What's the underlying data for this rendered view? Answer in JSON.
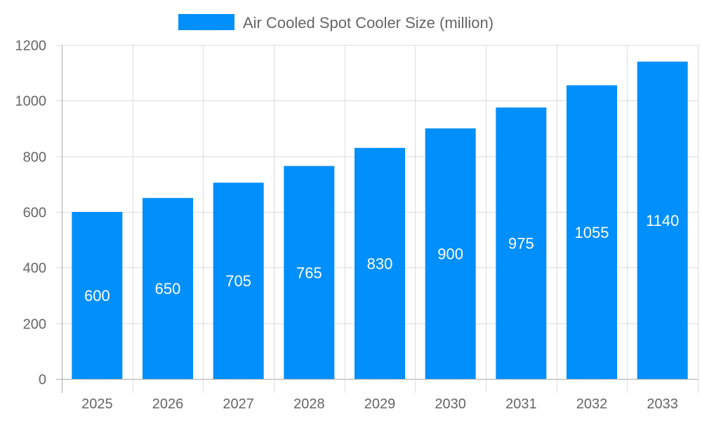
{
  "chart_data": {
    "type": "bar",
    "title": "",
    "xlabel": "",
    "ylabel": "",
    "categories": [
      "2025",
      "2026",
      "2027",
      "2028",
      "2029",
      "2030",
      "2031",
      "2032",
      "2033"
    ],
    "series": [
      {
        "name": "Air Cooled Spot Cooler Size (million)",
        "values": [
          600,
          650,
          705,
          765,
          830,
          900,
          975,
          1055,
          1140
        ],
        "color": "#018ffb"
      }
    ],
    "ylim": [
      0,
      1200
    ],
    "yticks": [
      0,
      200,
      400,
      600,
      800,
      1000,
      1200
    ],
    "grid": true,
    "legend": "top-center",
    "data_labels": true
  }
}
